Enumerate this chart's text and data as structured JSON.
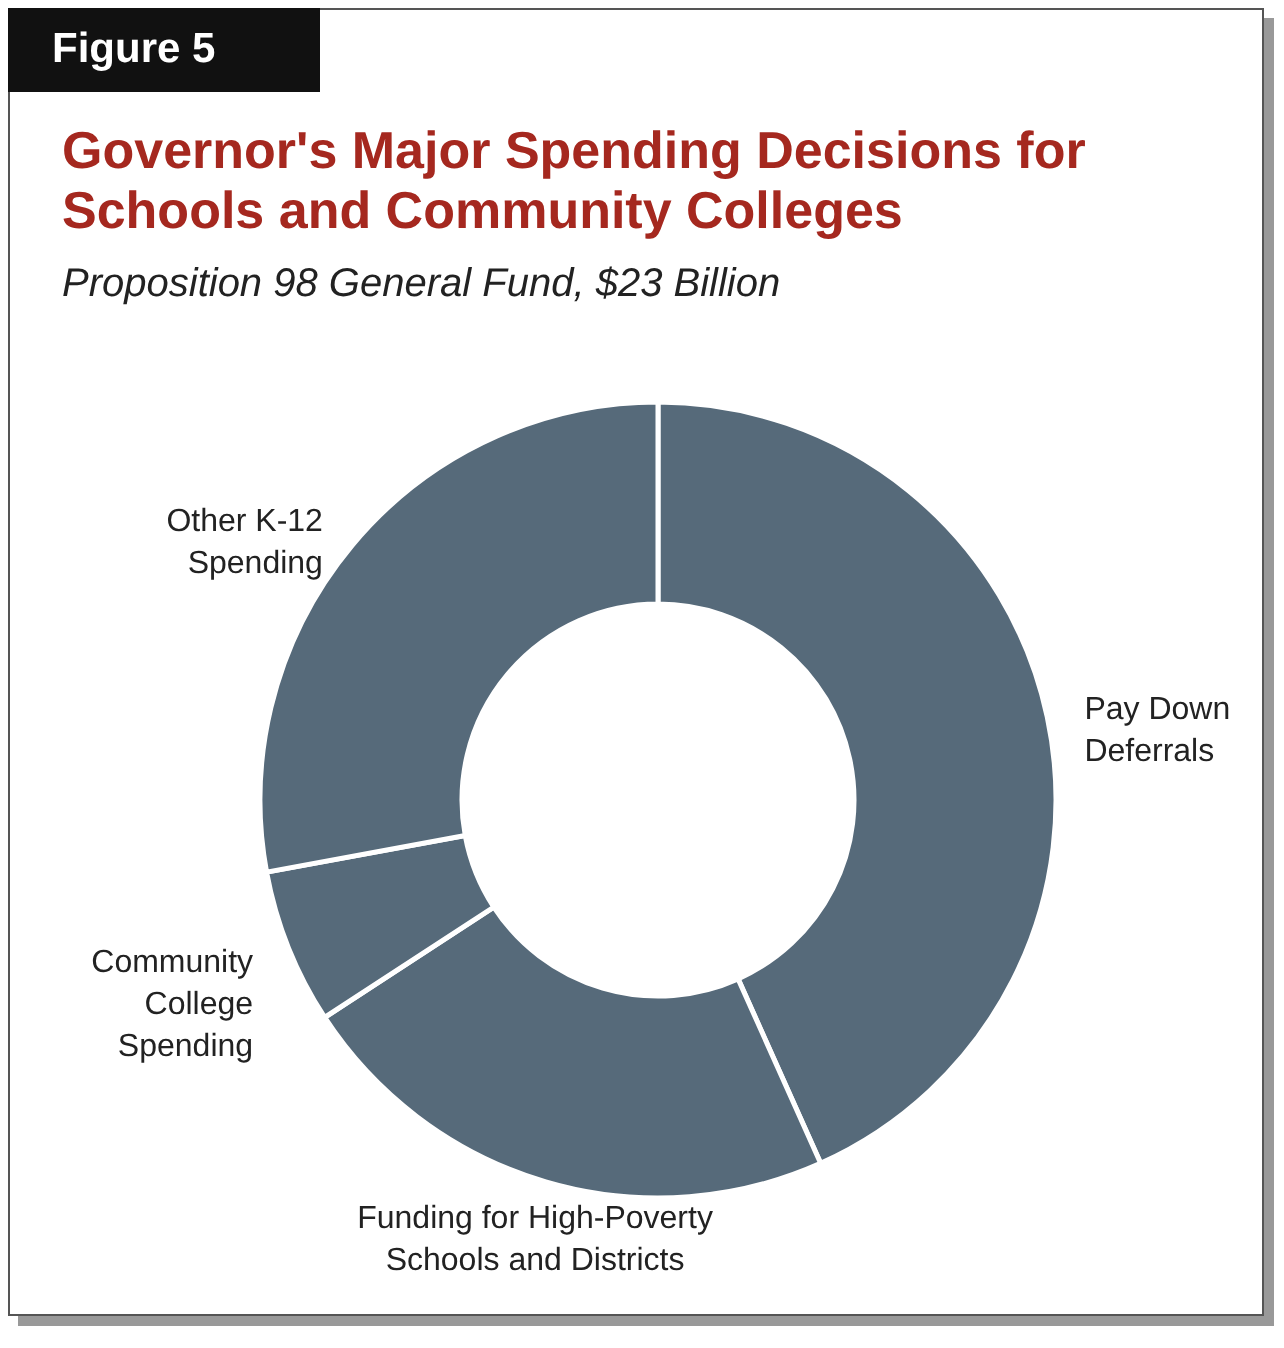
{
  "chart_data": {
    "type": "donut",
    "title": "Governor's Major Spending Decisions for Schools and Community Colleges",
    "subtitle": "Proposition 98 General Fund, $23 Billion",
    "annotations": [
      "Figure 5"
    ],
    "categories": [
      "Pay Down Deferrals",
      "Funding for High-Poverty Schools and Districts",
      "Community College Spending",
      "Other K-12 Spending"
    ],
    "values": [
      43.3,
      22.5,
      6.3,
      27.9
    ],
    "colors": [
      "#566a7a",
      "#566a7a",
      "#566a7a",
      "#566a7a"
    ]
  }
}
